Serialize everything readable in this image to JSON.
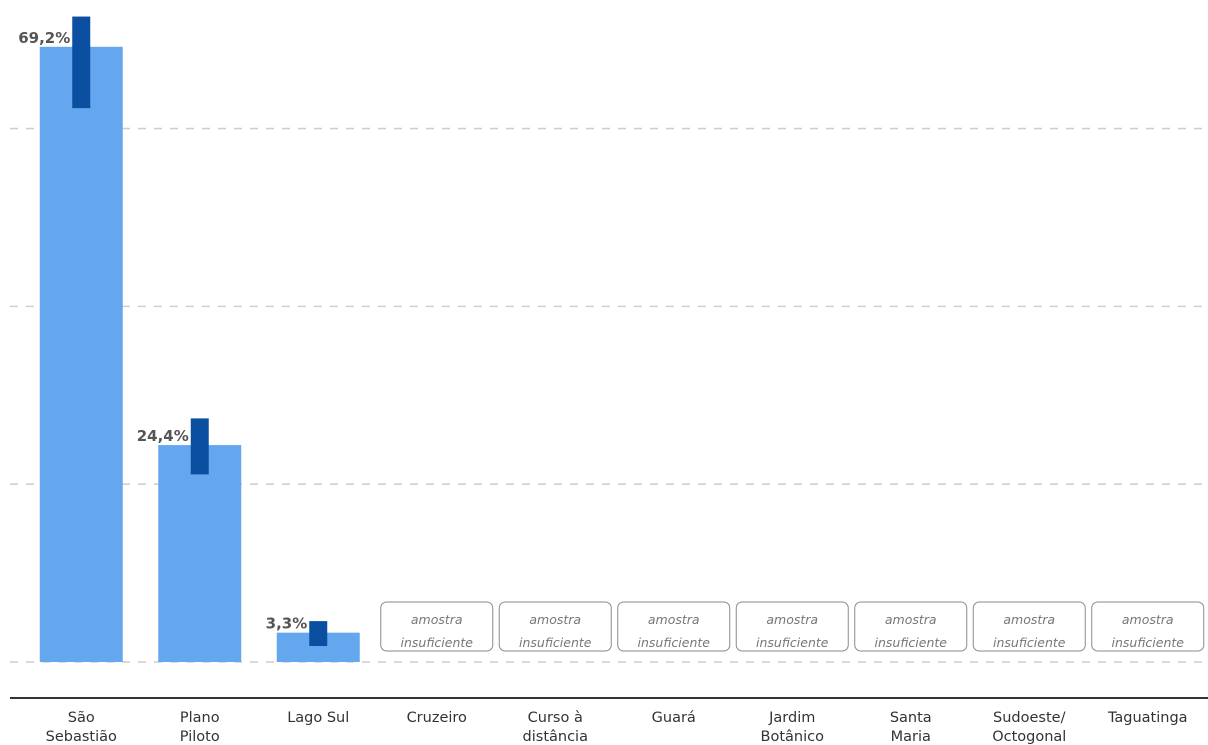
{
  "chart_data": {
    "type": "bar",
    "categories": [
      [
        "São",
        "Sebastião"
      ],
      [
        "Plano",
        "Piloto"
      ],
      [
        "Lago Sul"
      ],
      [
        "Cruzeiro"
      ],
      [
        "Curso à",
        "distância"
      ],
      [
        "Guará"
      ],
      [
        "Jardim",
        "Botânico"
      ],
      [
        "Santa",
        "Maria"
      ],
      [
        "Sudoeste/",
        "Octogonal"
      ],
      [
        "Taguatinga"
      ]
    ],
    "values": [
      69.2,
      24.4,
      3.3,
      null,
      null,
      null,
      null,
      null,
      null,
      null
    ],
    "value_labels": [
      "69,2%",
      "24,4%",
      "3,3%",
      "",
      "",
      "",
      "",
      "",
      "",
      ""
    ],
    "error_bars": [
      [
        62.3,
        72.6
      ],
      [
        21.1,
        27.4
      ],
      [
        1.8,
        4.6
      ],
      null,
      null,
      null,
      null,
      null,
      null,
      null
    ],
    "insufficient_sample_label": [
      "amostra",
      "insuficiente"
    ],
    "ylim": [
      0,
      73
    ],
    "yticks": [
      0,
      20,
      40,
      60
    ],
    "grid": true,
    "title": "",
    "xlabel": "",
    "ylabel": "",
    "colors": {
      "bar": "#65a7ee",
      "error_bar": "#0a4fa0",
      "grid": "#cfcfcf",
      "axis": "#333333"
    }
  }
}
